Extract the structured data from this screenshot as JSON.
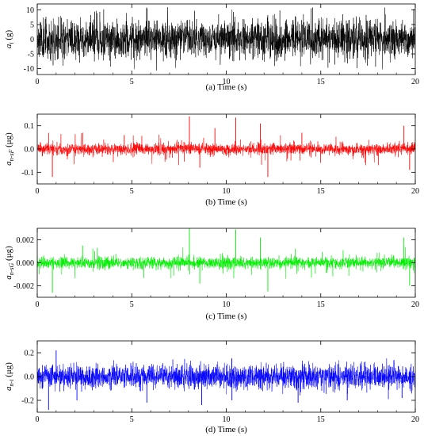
{
  "chart_data": [
    {
      "type": "line",
      "caption": "(a)   Time (s)",
      "ylabel_main": "a",
      "ylabel_sub": "i",
      "ylabel_unit": " (g)",
      "color": "#000000",
      "xlim": [
        0,
        20
      ],
      "ylim": [
        -12,
        12
      ],
      "xticks": [
        0,
        5,
        10,
        15,
        20
      ],
      "yticks": [
        -10,
        -5,
        0,
        5,
        10
      ],
      "ytick_labels": [
        "-10",
        "-5",
        "0",
        "5",
        "10"
      ],
      "signal": {
        "points": 2600,
        "base_amplitude": 3.2,
        "peak_amplitude": 11,
        "spike_rate": 0.01,
        "seed": 11
      },
      "spikes": []
    },
    {
      "type": "line",
      "caption": "(b)   Time (s)",
      "ylabel_main": "a",
      "ylabel_sub": "n-sF",
      "ylabel_unit": " (μg)",
      "color": "#ff0000",
      "xlim": [
        0,
        20
      ],
      "ylim": [
        -0.15,
        0.15
      ],
      "xticks": [
        0,
        5,
        10,
        15,
        20
      ],
      "yticks": [
        -0.1,
        0.0,
        0.1
      ],
      "ytick_labels": [
        "-0.1",
        "0.0",
        "0.1"
      ],
      "signal": {
        "points": 2600,
        "base_amplitude": 0.012,
        "peak_amplitude": 0.07,
        "spike_rate": 0.012,
        "seed": 23
      },
      "spikes": [
        {
          "t": 0.8,
          "v": -0.12
        },
        {
          "t": 2.4,
          "v": 0.07
        },
        {
          "t": 4.6,
          "v": 0.06
        },
        {
          "t": 8.05,
          "v": 0.14
        },
        {
          "t": 8.6,
          "v": -0.08
        },
        {
          "t": 9.4,
          "v": 0.09
        },
        {
          "t": 10.5,
          "v": 0.135
        },
        {
          "t": 11.8,
          "v": 0.11
        },
        {
          "t": 12.2,
          "v": -0.12
        },
        {
          "t": 14.0,
          "v": 0.07
        },
        {
          "t": 19.4,
          "v": 0.1
        },
        {
          "t": 19.7,
          "v": -0.09
        }
      ]
    },
    {
      "type": "line",
      "caption": "(c)   Time (s)",
      "ylabel_main": "a",
      "ylabel_sub": "n-sG",
      "ylabel_unit": " (μg)",
      "color": "#00ee00",
      "xlim": [
        0,
        20
      ],
      "ylim": [
        -0.003,
        0.003
      ],
      "xticks": [
        0,
        5,
        10,
        15,
        20
      ],
      "yticks": [
        -0.002,
        0.0,
        0.002
      ],
      "ytick_labels": [
        "-0.002",
        "0.000",
        "0.002"
      ],
      "signal": {
        "points": 2600,
        "base_amplitude": 0.00025,
        "peak_amplitude": 0.0014,
        "spike_rate": 0.012,
        "seed": 37
      },
      "spikes": [
        {
          "t": 0.8,
          "v": -0.0026
        },
        {
          "t": 2.4,
          "v": 0.0015
        },
        {
          "t": 8.05,
          "v": 0.003
        },
        {
          "t": 8.6,
          "v": -0.0018
        },
        {
          "t": 10.5,
          "v": 0.0029
        },
        {
          "t": 11.8,
          "v": 0.0022
        },
        {
          "t": 12.2,
          "v": -0.0025
        },
        {
          "t": 19.4,
          "v": 0.0022
        },
        {
          "t": 19.7,
          "v": -0.002
        }
      ]
    },
    {
      "type": "line",
      "caption": "(d)   Time (s)",
      "ylabel_main": "a",
      "ylabel_sub": "n-i",
      "ylabel_unit": " (μg)",
      "color": "#0000ff",
      "xlim": [
        0,
        20
      ],
      "ylim": [
        -0.3,
        0.3
      ],
      "xticks": [
        0,
        5,
        10,
        15,
        20
      ],
      "yticks": [
        -0.2,
        0.0,
        0.2
      ],
      "ytick_labels": [
        "-0.2",
        "0.0",
        "0.2"
      ],
      "signal": {
        "points": 2600,
        "base_amplitude": 0.05,
        "peak_amplitude": 0.13,
        "spike_rate": 0.008,
        "seed": 53
      },
      "spikes": [
        {
          "t": 0.6,
          "v": -0.28
        },
        {
          "t": 1.0,
          "v": 0.22
        },
        {
          "t": 2.1,
          "v": -0.2
        },
        {
          "t": 5.8,
          "v": -0.22
        },
        {
          "t": 8.7,
          "v": -0.24
        },
        {
          "t": 10.3,
          "v": -0.2
        },
        {
          "t": 13.8,
          "v": -0.22
        },
        {
          "t": 16.4,
          "v": -0.2
        },
        {
          "t": 19.3,
          "v": -0.18
        }
      ]
    }
  ]
}
